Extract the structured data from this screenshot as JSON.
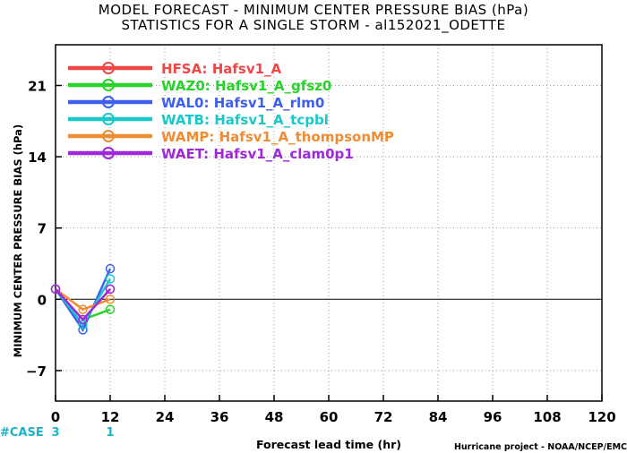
{
  "title": {
    "line1": "MODEL FORECAST - MINIMUM CENTER PRESSURE BIAS (hPa)",
    "line2": "STATISTICS FOR A SINGLE STORM - al152021_ODETTE"
  },
  "credit": "Hurricane project - NOAA/NCEP/EMC",
  "case_row": {
    "label": "#CASE",
    "counts": [
      {
        "x": 0,
        "text": "3"
      },
      {
        "x": 12,
        "text": "1"
      }
    ]
  },
  "chart_data": {
    "type": "line",
    "title": "MODEL FORECAST - MINIMUM CENTER PRESSURE BIAS (hPa)",
    "subtitle": "STATISTICS FOR A SINGLE STORM - al152021_ODETTE",
    "xlabel": "Forecast lead time (hr)",
    "ylabel": "MINIMUM CENTER PRESSURE BIAS (hPa)",
    "xlim": [
      0,
      120
    ],
    "ylim": [
      -10,
      25
    ],
    "xticks": [
      0,
      12,
      24,
      36,
      48,
      60,
      72,
      84,
      96,
      108,
      120
    ],
    "yticks": [
      -7,
      0,
      7,
      14,
      21
    ],
    "grid": true,
    "legend_position": "top-left",
    "x": [
      0,
      6,
      12
    ],
    "series": [
      {
        "code": "HFSA",
        "name": "Hafsv1_A",
        "color": "#f04646",
        "values": [
          1,
          -2,
          1
        ]
      },
      {
        "code": "WAZ0",
        "name": "Hafsv1_A_gfsz0",
        "color": "#28d228",
        "values": [
          1,
          -2,
          -1
        ]
      },
      {
        "code": "WAL0",
        "name": "Hafsv1_A_rlm0",
        "color": "#3c5ff0",
        "values": [
          1,
          -3,
          3
        ]
      },
      {
        "code": "WATB",
        "name": "Hafsv1_A_tcpbl",
        "color": "#19c8c8",
        "values": [
          1,
          -2.5,
          2
        ]
      },
      {
        "code": "WAMP",
        "name": "Hafsv1_A_thompsonMP",
        "color": "#f08c32",
        "values": [
          1,
          -1,
          0
        ]
      },
      {
        "code": "WAET",
        "name": "Hafsv1_A_clam0p1",
        "color": "#a028dc",
        "values": [
          1,
          -2,
          1
        ]
      }
    ]
  }
}
